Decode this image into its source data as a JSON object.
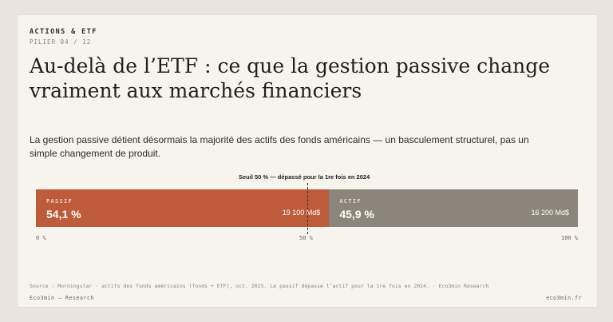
{
  "header": {
    "kicker": "ACTIONS & ETF",
    "pillar": "PILIER 04 / 12"
  },
  "title": "Au-delà de l’ETF : ce que la gestion passive change vraiment aux marchés financiers",
  "lead": "La gestion passive détient désormais la majorité des actifs des fonds américains — un basculement structurel, pas un simple changement de produit.",
  "chart": {
    "threshold_label": "Seuil 50 % — dépassé pour la 1re fois en 2024",
    "ticks": {
      "start": "0 %",
      "mid": "50 %",
      "end": "100 %"
    },
    "segments": [
      {
        "name": "PASSIF",
        "pct_label": "54,1 %",
        "amount_label": "19 100 Md$",
        "value": 54.1,
        "color": "#bd5b3b"
      },
      {
        "name": "ACTIF",
        "pct_label": "45,9 %",
        "amount_label": "16 200 Md$",
        "value": 45.9,
        "color": "#8b857a"
      }
    ]
  },
  "chart_data": {
    "type": "bar",
    "categories": [
      "PASSIF",
      "ACTIF"
    ],
    "values": [
      54.1,
      45.9
    ],
    "amounts": [
      "19 100 Md$",
      "16 200 Md$"
    ],
    "threshold": 50,
    "xlim": [
      0,
      100
    ]
  },
  "source": "Source : Morningstar · actifs des fonds américains (fonds + ETF), oct. 2025. Le passif dépasse l’actif pour la 1re fois en 2024.  ·  Eco3min Research",
  "footer": {
    "left": "Eco3min — Research",
    "right": "eco3min.fr"
  }
}
